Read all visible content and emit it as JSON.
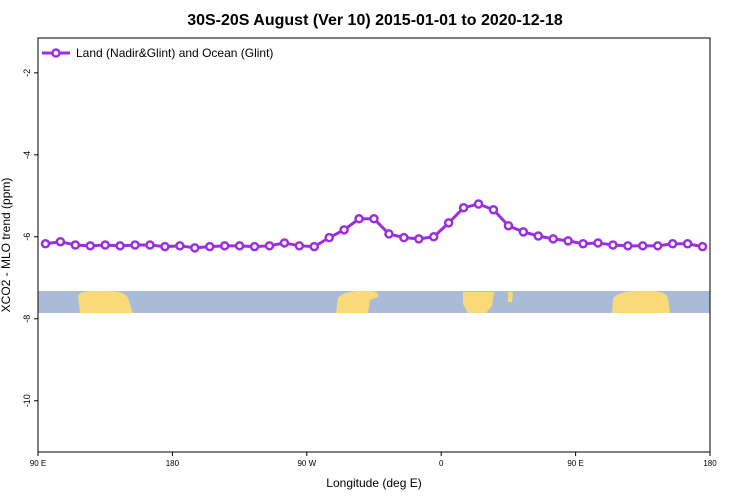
{
  "chart_data": {
    "type": "line",
    "title": "30S-20S August (Ver 10)   2015-01-01 to 2020-12-18",
    "xlabel": "Longitude (deg E)",
    "ylabel": "XCO2 - MLO trend (ppm)",
    "x": [
      95,
      105,
      115,
      125,
      135,
      145,
      155,
      165,
      175,
      185,
      195,
      205,
      215,
      225,
      235,
      245,
      255,
      265,
      275,
      285,
      295,
      305,
      315,
      325,
      335,
      345,
      355,
      365,
      375,
      385,
      395,
      405,
      415,
      425,
      435,
      445,
      455,
      465,
      475,
      485,
      495,
      505,
      515,
      525,
      535
    ],
    "series": [
      {
        "name": "Land (Nadir&Glint) and Ocean (Glint)",
        "color": "#9b2fe0",
        "values": [
          -6.17,
          -6.12,
          -6.2,
          -6.22,
          -6.2,
          -6.22,
          -6.2,
          -6.2,
          -6.24,
          -6.22,
          -6.27,
          -6.24,
          -6.22,
          -6.22,
          -6.24,
          -6.22,
          -6.15,
          -6.22,
          -6.24,
          -6.02,
          -5.83,
          -5.56,
          -5.56,
          -5.93,
          -6.02,
          -6.05,
          -6.0,
          -5.66,
          -5.29,
          -5.2,
          -5.34,
          -5.73,
          -5.88,
          -5.98,
          -6.05,
          -6.1,
          -6.17,
          -6.15,
          -6.2,
          -6.22,
          -6.22,
          -6.22,
          -6.17,
          -6.17,
          -6.24
        ]
      }
    ],
    "xlim": [
      90,
      540
    ],
    "xticks": [
      {
        "value": 90,
        "label": "90 E"
      },
      {
        "value": 180,
        "label": "180"
      },
      {
        "value": 270,
        "label": "90 W"
      },
      {
        "value": 360,
        "label": "0"
      },
      {
        "value": 450,
        "label": "90 E"
      },
      {
        "value": 540,
        "label": "180"
      }
    ],
    "ylim": [
      -11.25,
      -1.15
    ],
    "yticks": [
      -2,
      -4,
      -6,
      -8,
      -10
    ],
    "legend": "top-left"
  }
}
